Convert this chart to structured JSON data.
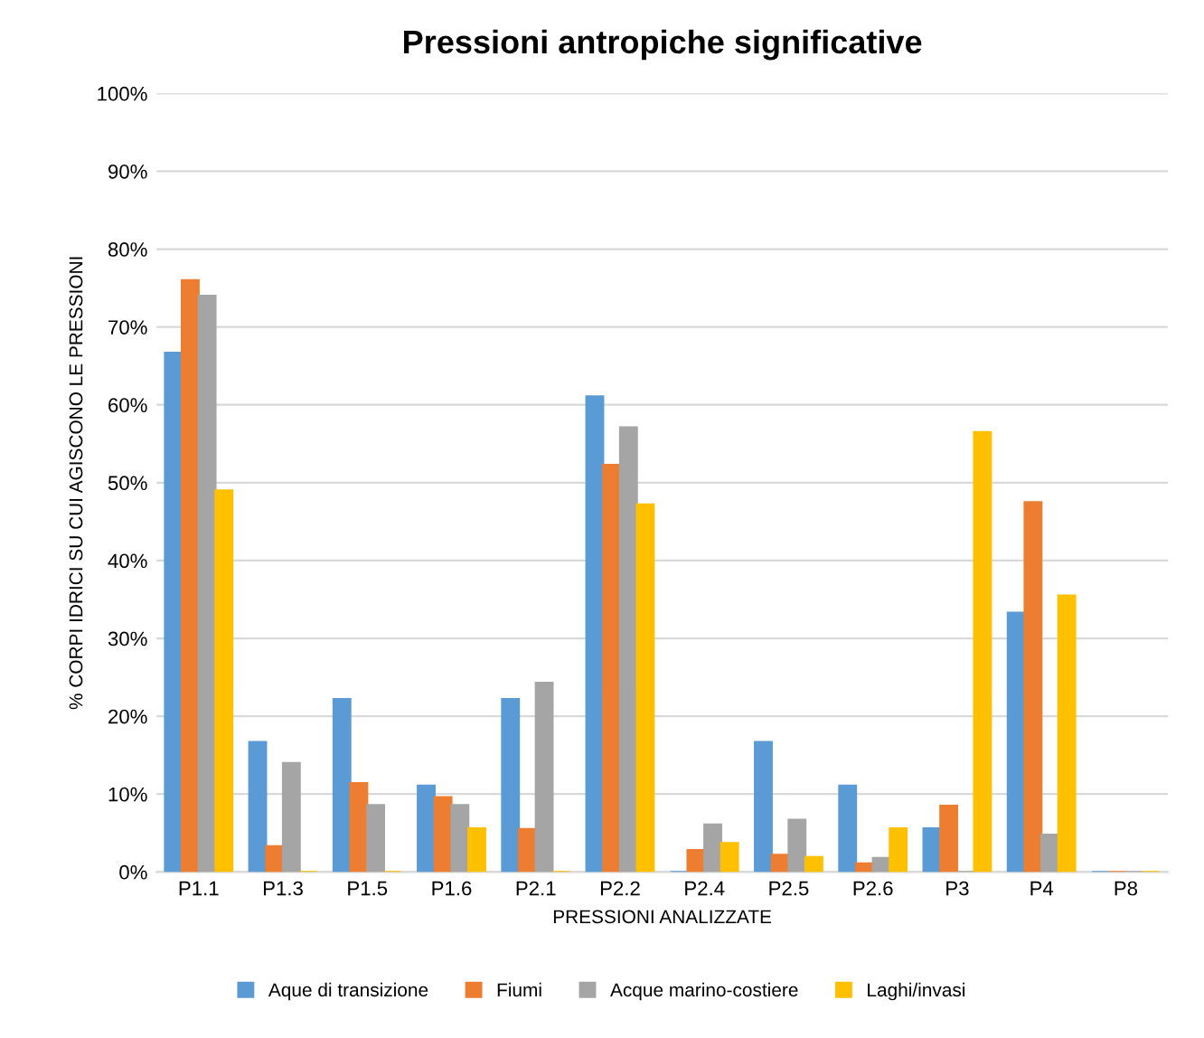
{
  "chart_data": {
    "type": "bar",
    "title": "Pressioni antropiche significative",
    "xlabel": "PRESSIONI ANALIZZATE",
    "ylabel": "% CORPI IDRICI SU CUI AGISCONO LE PRESSIONI",
    "categories": [
      "P1.1",
      "P1.3",
      "P1.5",
      "P1.6",
      "P2.1",
      "P2.2",
      "P2.4",
      "P2.5",
      "P2.6",
      "P3",
      "P4",
      "P8"
    ],
    "series": [
      {
        "name": "Aque di transizione",
        "color": "#5b9bd5",
        "values": [
          66.7,
          16.7,
          22.2,
          11.1,
          22.2,
          61.1,
          0,
          16.7,
          11.1,
          5.6,
          33.3,
          0
        ]
      },
      {
        "name": "Fiumi",
        "color": "#ed7d31",
        "values": [
          76,
          3.3,
          11.4,
          9.6,
          5.5,
          52.3,
          2.8,
          2.2,
          1.1,
          8.5,
          47.5,
          0
        ]
      },
      {
        "name": "Acque marino-costiere",
        "color": "#a5a5a5",
        "values": [
          74,
          14,
          8.6,
          8.6,
          24.3,
          57.1,
          6.1,
          6.7,
          1.8,
          0,
          4.8,
          0
        ]
      },
      {
        "name": "Laghi/invasi",
        "color": "#ffc000",
        "values": [
          49,
          0,
          0,
          5.6,
          0,
          47.2,
          3.7,
          1.9,
          5.6,
          56.5,
          35.5,
          0
        ]
      }
    ],
    "ylim": [
      0,
      100
    ],
    "yticks": [
      {
        "value": 0,
        "label": "0%"
      },
      {
        "value": 10,
        "label": "10%"
      },
      {
        "value": 20,
        "label": "20%"
      },
      {
        "value": 30,
        "label": "30%"
      },
      {
        "value": 40,
        "label": "40%"
      },
      {
        "value": 50,
        "label": "50%"
      },
      {
        "value": 60,
        "label": "60%"
      },
      {
        "value": 70,
        "label": "70%"
      },
      {
        "value": 80,
        "label": "80%"
      },
      {
        "value": 90,
        "label": "90%"
      },
      {
        "value": 100,
        "label": "100%"
      }
    ],
    "grid": "y",
    "legend": "bottom"
  }
}
